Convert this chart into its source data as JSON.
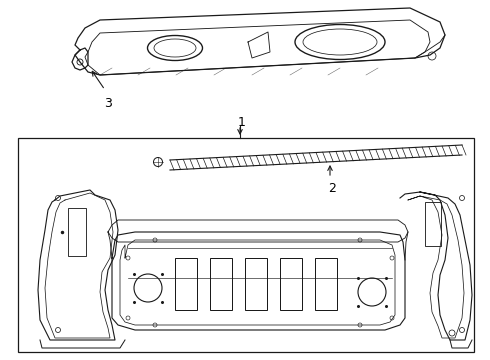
{
  "background_color": "#ffffff",
  "line_color": "#1a1a1a",
  "label_color": "#000000",
  "fig_width": 4.9,
  "fig_height": 3.6,
  "dpi": 100,
  "label_fontsize": 9,
  "box_solid": true
}
